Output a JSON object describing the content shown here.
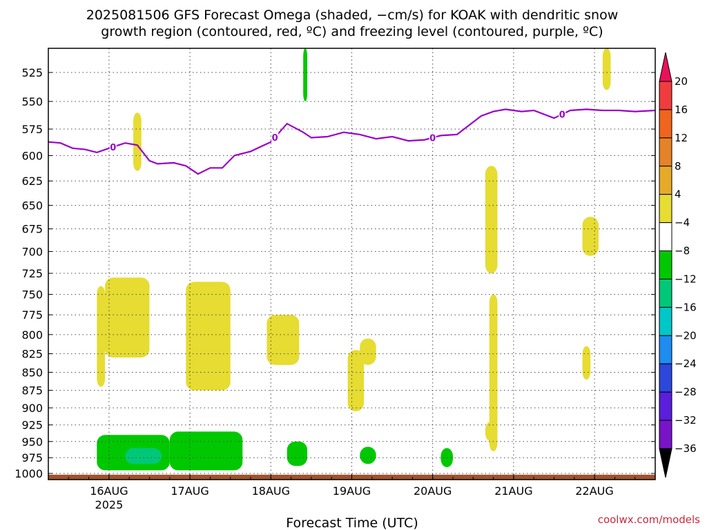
{
  "chart_data": {
    "type": "heatmap",
    "title_line1": "2025081506 GFS Forecast Omega (shaded, −cm/s) for KOAK with dendritic snow",
    "title_line2": "growth region (contoured, red, ºC) and freezing level (contoured, purple, ºC)",
    "xlabel": "Forecast Time (UTC)",
    "credit": "coolwx.com/models",
    "x_axis": {
      "unit": "day",
      "range": [
        15.25,
        22.75
      ],
      "tick_values": [
        16,
        17,
        18,
        19,
        20,
        21,
        22
      ],
      "tick_labels": [
        "16AUG",
        "17AUG",
        "18AUG",
        "19AUG",
        "20AUG",
        "21AUG",
        "22AUG"
      ],
      "year_label": "2025"
    },
    "y_axis": {
      "unit": "hPa",
      "range": [
        1010,
        505
      ],
      "scale": "log",
      "tick_labels": [
        "525",
        "550",
        "575",
        "600",
        "625",
        "650",
        "675",
        "700",
        "725",
        "750",
        "775",
        "800",
        "825",
        "850",
        "875",
        "900",
        "925",
        "950",
        "975",
        "1000"
      ],
      "grid": "dotted"
    },
    "colorbar": {
      "tick_labels": [
        "20",
        "16",
        "12",
        "8",
        "4",
        "−4",
        "−8",
        "−12",
        "−16",
        "−20",
        "−24",
        "−28",
        "−32",
        "−36"
      ],
      "levels": [
        20,
        16,
        12,
        8,
        4,
        -4,
        -8,
        -12,
        -16,
        -20,
        -24,
        -28,
        -32,
        -36
      ],
      "colors": [
        "#e8115a",
        "#f03c3c",
        "#f0641e",
        "#e68228",
        "#e6aa28",
        "#e6dc32",
        "#ffffff",
        "#00c800",
        "#00c878",
        "#00c8c8",
        "#1e8cf0",
        "#2d46dc",
        "#5a1edc",
        "#7814c8",
        "#a000c8",
        "#a0a0a0",
        "#000000"
      ],
      "overflow": "arrows"
    },
    "freezing_level": {
      "label": "0",
      "label_days": [
        16.05,
        18.05,
        20.0,
        21.6
      ],
      "days": [
        15.25,
        15.4,
        15.55,
        15.7,
        15.85,
        16.0,
        16.2,
        16.35,
        16.5,
        16.6,
        16.8,
        16.95,
        17.1,
        17.25,
        17.4,
        17.55,
        17.75,
        18.0,
        18.2,
        18.4,
        18.5,
        18.7,
        18.9,
        19.1,
        19.3,
        19.5,
        19.7,
        19.9,
        20.1,
        20.3,
        20.6,
        20.75,
        20.9,
        21.1,
        21.25,
        21.5,
        21.7,
        21.9,
        22.1,
        22.3,
        22.5,
        22.75
      ],
      "pressure": [
        587,
        588,
        593,
        594,
        597,
        593,
        588,
        590,
        605,
        608,
        607,
        610,
        618,
        612,
        612,
        600,
        596,
        587,
        570,
        578,
        583,
        582,
        578,
        580,
        584,
        582,
        586,
        585,
        581,
        580,
        563,
        559,
        557,
        559,
        558,
        565,
        558,
        557,
        558,
        558,
        559,
        558
      ]
    },
    "omega_regions": [
      {
        "level": "4_to_8",
        "day_range": [
          15.85,
          15.95
        ],
        "p_range": [
          740,
          870
        ]
      },
      {
        "level": "4_to_8",
        "day_range": [
          15.95,
          16.5
        ],
        "p_range": [
          730,
          830
        ]
      },
      {
        "level": "4_to_8",
        "day_range": [
          16.3,
          16.4
        ],
        "p_range": [
          560,
          615
        ]
      },
      {
        "level": "4_to_8",
        "day_range": [
          16.95,
          17.5
        ],
        "p_range": [
          735,
          875
        ]
      },
      {
        "level": "4_to_8",
        "day_range": [
          17.95,
          18.35
        ],
        "p_range": [
          775,
          840
        ]
      },
      {
        "level": "4_to_8",
        "day_range": [
          18.95,
          19.15
        ],
        "p_range": [
          820,
          905
        ]
      },
      {
        "level": "4_to_8",
        "day_range": [
          19.1,
          19.3
        ],
        "p_range": [
          805,
          840
        ]
      },
      {
        "level": "4_to_8",
        "day_range": [
          20.65,
          20.8
        ],
        "p_range": [
          610,
          725
        ]
      },
      {
        "level": "4_to_8",
        "day_range": [
          20.7,
          20.8
        ],
        "p_range": [
          750,
          965
        ]
      },
      {
        "level": "4_to_8",
        "day_range": [
          20.65,
          20.8
        ],
        "p_range": [
          920,
          950
        ]
      },
      {
        "level": "4_to_8",
        "day_range": [
          21.85,
          22.05
        ],
        "p_range": [
          662,
          705
        ]
      },
      {
        "level": "4_to_8",
        "day_range": [
          21.85,
          21.95
        ],
        "p_range": [
          815,
          860
        ]
      },
      {
        "level": "4_to_8",
        "day_range": [
          22.1,
          22.2
        ],
        "p_range": [
          505,
          540
        ]
      },
      {
        "level": "-4_to_-8",
        "day_range": [
          15.85,
          16.75
        ],
        "p_range": [
          940,
          995
        ]
      },
      {
        "level": "-4_to_-8",
        "day_range": [
          16.75,
          17.65
        ],
        "p_range": [
          935,
          995
        ]
      },
      {
        "level": "-4_to_-8",
        "day_range": [
          18.2,
          18.45
        ],
        "p_range": [
          950,
          988
        ]
      },
      {
        "level": "-4_to_-8",
        "day_range": [
          19.1,
          19.3
        ],
        "p_range": [
          958,
          985
        ]
      },
      {
        "level": "-4_to_-8",
        "day_range": [
          20.1,
          20.25
        ],
        "p_range": [
          960,
          990
        ]
      },
      {
        "level": "-4_to_-8",
        "day_range": [
          18.4,
          18.45
        ],
        "p_range": [
          505,
          550
        ]
      },
      {
        "level": "-8_to_-12",
        "day_range": [
          16.2,
          16.65
        ],
        "p_range": [
          960,
          985
        ]
      }
    ]
  }
}
